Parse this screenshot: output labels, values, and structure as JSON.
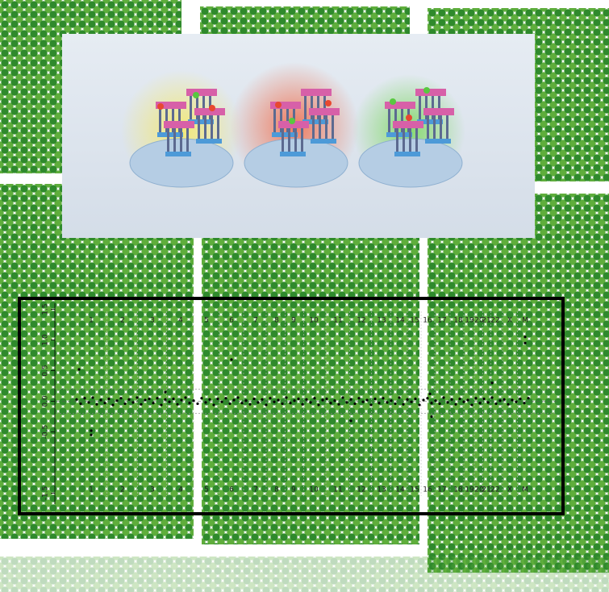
{
  "chart_data": {
    "type": "scatter",
    "chromosomes": [
      "1",
      "2",
      "3",
      "4",
      "5",
      "6",
      "7",
      "8",
      "9",
      "10",
      "11",
      "12",
      "13",
      "14",
      "15",
      "16",
      "17",
      "18",
      "19",
      "20",
      "21",
      "22",
      "X",
      "M"
    ],
    "xlim": [
      0,
      560
    ],
    "ylim": [
      -1.6,
      1.6
    ],
    "yticks": [
      1.5,
      {
        "value": 1,
        "label": "1.0"
      },
      0.5,
      {
        "value": 0,
        "label": "0.0"
      },
      -0.5,
      -1.5
    ],
    "thresholds": [
      0.2,
      -0.2
    ],
    "x": [
      0,
      5,
      10,
      15,
      20,
      25,
      30,
      35,
      40,
      45,
      50,
      55,
      60,
      65,
      70,
      75,
      80,
      85,
      90,
      95,
      100,
      105,
      110,
      115,
      120,
      125,
      130,
      135,
      140,
      145,
      150,
      155,
      160,
      165,
      170,
      175,
      180,
      185,
      190,
      195,
      200,
      205,
      210,
      215,
      220,
      225,
      230,
      235,
      240,
      245,
      250,
      255,
      260,
      265,
      270,
      275,
      280,
      285,
      290,
      295,
      300,
      305,
      310,
      315,
      320,
      325,
      330,
      335,
      340,
      345,
      350,
      355,
      360,
      365,
      370,
      375,
      380,
      385,
      390,
      395,
      400,
      405,
      410,
      415,
      420,
      425,
      430,
      435,
      440,
      445,
      450,
      455,
      460,
      465,
      470,
      475,
      480,
      485,
      490,
      495,
      500,
      505,
      510,
      515,
      520,
      525,
      530,
      535,
      540,
      545,
      550,
      555,
      560,
      3,
      18,
      18,
      192,
      556,
      556,
      515,
      340,
      440,
      110,
      438
    ],
    "y": [
      0.03,
      -0.04,
      0.05,
      -0.02,
      0.06,
      -0.05,
      0.02,
      -0.03,
      0.04,
      -0.06,
      0.01,
      0.05,
      -0.04,
      0.03,
      -0.02,
      0.06,
      -0.05,
      0.02,
      0.04,
      -0.03,
      0.05,
      -0.06,
      0.03,
      -0.01,
      0.04,
      -0.05,
      0.02,
      0.06,
      -0.03,
      0.01,
      -0.04,
      0.05,
      -0.02,
      0.03,
      -0.06,
      0.04,
      -0.01,
      0.05,
      -0.04,
      0.02,
      0.06,
      -0.03,
      0.01,
      -0.05,
      0.04,
      -0.02,
      0.03,
      -0.06,
      0.05,
      -0.01,
      0.02,
      -0.04,
      0.06,
      -0.03,
      0.01,
      0.04,
      -0.05,
      0.03,
      -0.02,
      0.05,
      -0.06,
      0.02,
      0.04,
      -0.03,
      0.01,
      -0.05,
      0.06,
      -0.02,
      0.03,
      -0.04,
      0.05,
      -0.01,
      0.02,
      -0.06,
      0.04,
      -0.03,
      0.05,
      -0.02,
      0.01,
      -0.04,
      0.06,
      -0.05,
      0.03,
      -0.01,
      0.04,
      -0.06,
      0.02,
      0.05,
      -0.03,
      0.01,
      -0.04,
      0.06,
      -0.02,
      0.03,
      -0.05,
      0.04,
      -0.01,
      0.02,
      -0.06,
      0.05,
      -0.03,
      0.04,
      -0.02,
      0.06,
      -0.04,
      0.01,
      0.03,
      -0.05,
      0.02,
      -0.01,
      0.04,
      -0.03,
      0.05,
      0.52,
      -0.48,
      -0.55,
      0.68,
      1.05,
      0.95,
      0.3,
      -0.32,
      -0.25,
      0.15,
      0.12
    ]
  }
}
